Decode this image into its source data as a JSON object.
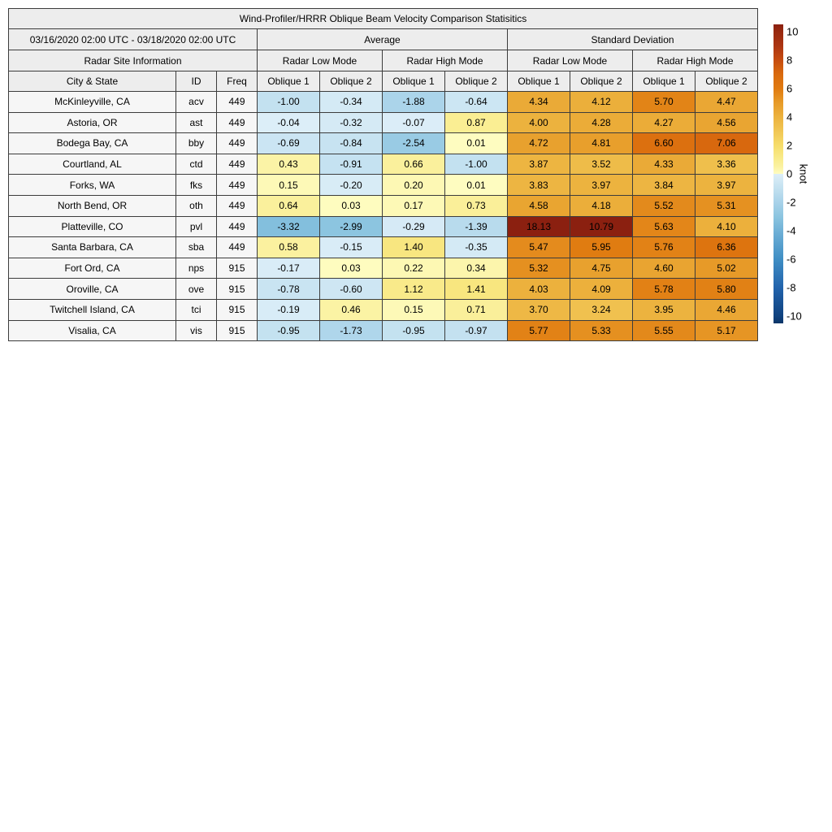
{
  "chart_data": {
    "type": "table",
    "title": "Wind-Profiler/HRRR Oblique Beam Velocity Comparison Statisitics",
    "period": "03/16/2020 02:00 UTC - 03/18/2020 02:00 UTC",
    "group_average": "Average",
    "group_std": "Standard Deviation",
    "site_info_header": "Radar Site Information",
    "subgroups": [
      "Radar Low Mode",
      "Radar High Mode",
      "Radar Low Mode",
      "Radar High Mode"
    ],
    "columns": [
      "City & State",
      "ID",
      "Freq",
      "Oblique 1",
      "Oblique 2",
      "Oblique 1",
      "Oblique 2",
      "Oblique 1",
      "Oblique 2",
      "Oblique 1",
      "Oblique 2"
    ],
    "rows": [
      {
        "city": "McKinleyville, CA",
        "id": "acv",
        "freq": "449",
        "values": [
          -1.0,
          -0.34,
          -1.88,
          -0.64,
          4.34,
          4.12,
          5.7,
          4.47
        ]
      },
      {
        "city": "Astoria, OR",
        "id": "ast",
        "freq": "449",
        "values": [
          -0.04,
          -0.32,
          -0.07,
          0.87,
          4.0,
          4.28,
          4.27,
          4.56
        ]
      },
      {
        "city": "Bodega Bay, CA",
        "id": "bby",
        "freq": "449",
        "values": [
          -0.69,
          -0.84,
          -2.54,
          0.01,
          4.72,
          4.81,
          6.6,
          7.06
        ]
      },
      {
        "city": "Courtland, AL",
        "id": "ctd",
        "freq": "449",
        "values": [
          0.43,
          -0.91,
          0.66,
          -1.0,
          3.87,
          3.52,
          4.33,
          3.36
        ]
      },
      {
        "city": "Forks, WA",
        "id": "fks",
        "freq": "449",
        "values": [
          0.15,
          -0.2,
          0.2,
          0.01,
          3.83,
          3.97,
          3.84,
          3.97
        ]
      },
      {
        "city": "North Bend, OR",
        "id": "oth",
        "freq": "449",
        "values": [
          0.64,
          0.03,
          0.17,
          0.73,
          4.58,
          4.18,
          5.52,
          5.31
        ]
      },
      {
        "city": "Platteville, CO",
        "id": "pvl",
        "freq": "449",
        "values": [
          -3.32,
          -2.99,
          -0.29,
          -1.39,
          18.13,
          10.79,
          5.63,
          4.1
        ]
      },
      {
        "city": "Santa Barbara, CA",
        "id": "sba",
        "freq": "449",
        "values": [
          0.58,
          -0.15,
          1.4,
          -0.35,
          5.47,
          5.95,
          5.76,
          6.36
        ]
      },
      {
        "city": "Fort Ord, CA",
        "id": "nps",
        "freq": "915",
        "values": [
          -0.17,
          0.03,
          0.22,
          0.34,
          5.32,
          4.75,
          4.6,
          5.02
        ]
      },
      {
        "city": "Oroville, CA",
        "id": "ove",
        "freq": "915",
        "values": [
          -0.78,
          -0.6,
          1.12,
          1.41,
          4.03,
          4.09,
          5.78,
          5.8
        ]
      },
      {
        "city": "Twitchell Island, CA",
        "id": "tci",
        "freq": "915",
        "values": [
          -0.19,
          0.46,
          0.15,
          0.71,
          3.7,
          3.24,
          3.95,
          4.46
        ]
      },
      {
        "city": "Visalia, CA",
        "id": "vis",
        "freq": "915",
        "values": [
          -0.95,
          -1.73,
          -0.95,
          -0.97,
          5.77,
          5.33,
          5.55,
          5.17
        ]
      }
    ],
    "colorbar": {
      "label": "knot",
      "ticks": [
        10,
        8,
        6,
        4,
        2,
        0,
        -2,
        -4,
        -6,
        -8,
        -10
      ],
      "vmin": -10.5,
      "vmax": 10.5
    },
    "colormap_stops": [
      [
        -10.5,
        "#0b3567"
      ],
      [
        -10,
        "#10427f"
      ],
      [
        -8,
        "#2263ac"
      ],
      [
        -6,
        "#3f8ec4"
      ],
      [
        -4,
        "#70b1d7"
      ],
      [
        -3,
        "#8cc5e0"
      ],
      [
        -2,
        "#a8d2e9"
      ],
      [
        -1,
        "#c3e1f0"
      ],
      [
        -0.01,
        "#ddeef8"
      ],
      [
        0.01,
        "#fefcc0"
      ],
      [
        0.5,
        "#fbf2a2"
      ],
      [
        1,
        "#f9ec8e"
      ],
      [
        2,
        "#f6dd6a"
      ],
      [
        3,
        "#f1c654"
      ],
      [
        4,
        "#ecb23e"
      ],
      [
        5,
        "#e79b28"
      ],
      [
        6,
        "#e07a10"
      ],
      [
        7,
        "#d96a0e"
      ],
      [
        8,
        "#c64c10"
      ],
      [
        9,
        "#ac3512"
      ],
      [
        10,
        "#98290f"
      ],
      [
        10.5,
        "#8b2010"
      ]
    ]
  }
}
